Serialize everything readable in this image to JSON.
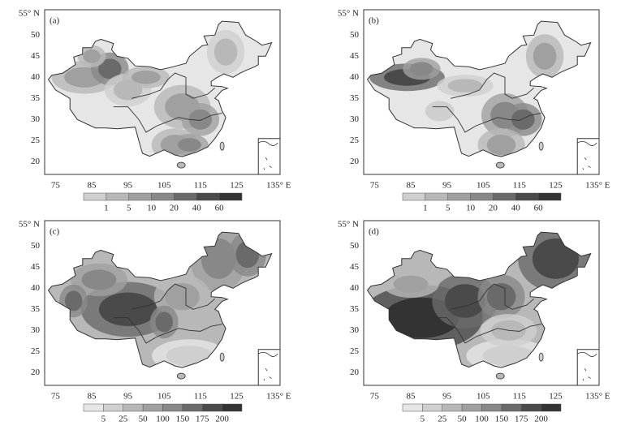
{
  "panels": [
    {
      "label": "(a)",
      "lon_ticks": [
        "75",
        "85",
        "95",
        "105",
        "115",
        "125",
        "135° E"
      ],
      "lat_ticks": [
        "55° N",
        "50",
        "45",
        "40",
        "35",
        "30",
        "25",
        "20"
      ],
      "colorbar": [
        "1",
        "5",
        "10",
        "20",
        "40",
        "60"
      ]
    },
    {
      "label": "(b)",
      "lon_ticks": [
        "75",
        "85",
        "95",
        "105",
        "115",
        "125",
        "135° E"
      ],
      "lat_ticks": [
        "55° N",
        "50",
        "45",
        "40",
        "35",
        "30",
        "25",
        "20"
      ],
      "colorbar": [
        "1",
        "5",
        "10",
        "20",
        "40",
        "60"
      ]
    },
    {
      "label": "(c)",
      "lon_ticks": [
        "75",
        "85",
        "95",
        "105",
        "115",
        "125",
        "135° E"
      ],
      "lat_ticks": [
        "55° N",
        "50",
        "45",
        "40",
        "35",
        "30",
        "25",
        "20"
      ],
      "colorbar": [
        "5",
        "25",
        "50",
        "100",
        "150",
        "175",
        "200"
      ]
    },
    {
      "label": "(d)",
      "lon_ticks": [
        "75",
        "85",
        "95",
        "105",
        "115",
        "125",
        "135° E"
      ],
      "lat_ticks": [
        "55° N",
        "50",
        "45",
        "40",
        "35",
        "30",
        "25",
        "20"
      ],
      "colorbar": [
        "5",
        "25",
        "50",
        "100",
        "150",
        "175",
        "200"
      ]
    }
  ]
}
